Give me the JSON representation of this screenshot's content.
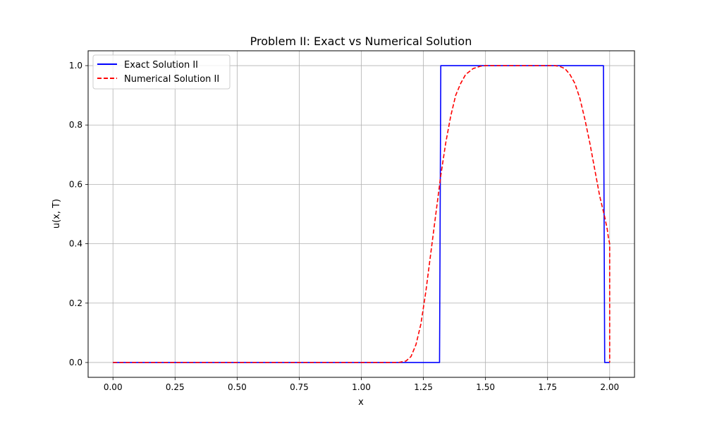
{
  "chart_data": {
    "type": "line",
    "title": "Problem II: Exact vs Numerical Solution",
    "xlabel": "x",
    "ylabel": "u(x, T)",
    "xlim": [
      -0.1,
      2.1
    ],
    "ylim": [
      -0.05,
      1.05
    ],
    "xticks": [
      0.0,
      0.25,
      0.5,
      0.75,
      1.0,
      1.25,
      1.5,
      1.75,
      2.0
    ],
    "xtick_labels": [
      "0.00",
      "0.25",
      "0.50",
      "0.75",
      "1.00",
      "1.25",
      "1.50",
      "1.75",
      "2.00"
    ],
    "yticks": [
      0.0,
      0.2,
      0.4,
      0.6,
      0.8,
      1.0
    ],
    "ytick_labels": [
      "0.0",
      "0.2",
      "0.4",
      "0.6",
      "0.8",
      "1.0"
    ],
    "grid": true,
    "legend_position": "top-left",
    "series": [
      {
        "name": "Exact Solution II",
        "color": "#0000ff",
        "style": "solid",
        "x": [
          0.0,
          1.315,
          1.32,
          1.975,
          1.98,
          2.0
        ],
        "y": [
          0.0,
          0.0,
          1.0,
          1.0,
          0.0,
          0.0
        ]
      },
      {
        "name": "Numerical Solution II",
        "color": "#ff0000",
        "style": "dashed",
        "x": [
          0.0,
          1.1,
          1.15,
          1.18,
          1.2,
          1.22,
          1.24,
          1.26,
          1.28,
          1.3,
          1.32,
          1.34,
          1.36,
          1.38,
          1.4,
          1.42,
          1.45,
          1.48,
          1.5,
          1.6,
          1.7,
          1.78,
          1.8,
          1.82,
          1.84,
          1.86,
          1.88,
          1.9,
          1.92,
          1.94,
          1.96,
          1.98,
          1.99,
          1.995,
          2.0,
          2.0
        ],
        "y": [
          0.0,
          0.0,
          0.0,
          0.005,
          0.02,
          0.06,
          0.13,
          0.24,
          0.37,
          0.5,
          0.63,
          0.74,
          0.83,
          0.9,
          0.94,
          0.97,
          0.99,
          0.998,
          1.0,
          1.0,
          1.0,
          1.0,
          0.997,
          0.99,
          0.97,
          0.94,
          0.89,
          0.82,
          0.74,
          0.65,
          0.56,
          0.49,
          0.45,
          0.42,
          0.4,
          0.0
        ]
      }
    ]
  }
}
